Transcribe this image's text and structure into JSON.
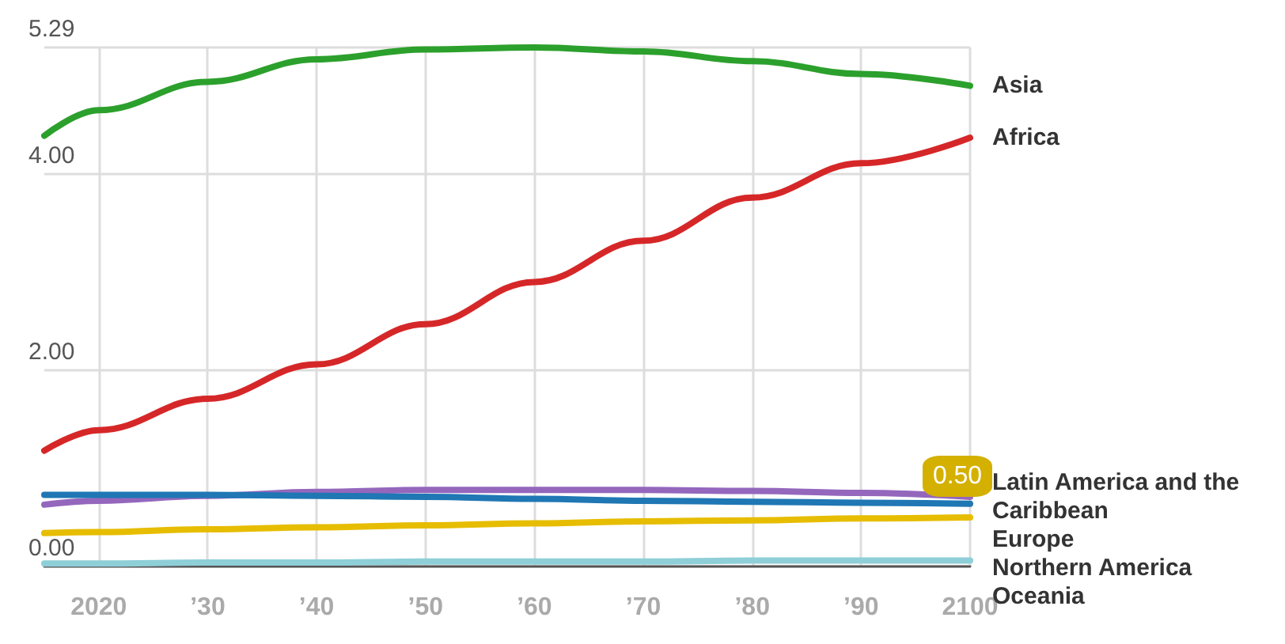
{
  "chart_data": {
    "type": "line",
    "x": [
      2015,
      2020,
      2030,
      2040,
      2050,
      2060,
      2070,
      2080,
      2090,
      2100
    ],
    "series": [
      {
        "name": "Asia",
        "color": "#2ca02c",
        "values": [
          4.39,
          4.65,
          4.94,
          5.17,
          5.27,
          5.29,
          5.25,
          5.15,
          5.02,
          4.9
        ]
      },
      {
        "name": "Africa",
        "color": "#d62728",
        "values": [
          1.18,
          1.39,
          1.71,
          2.06,
          2.47,
          2.9,
          3.32,
          3.76,
          4.11,
          4.37
        ]
      },
      {
        "name": "Latin America and the Caribbean",
        "color": "#9467bd",
        "values": [
          0.63,
          0.67,
          0.72,
          0.76,
          0.78,
          0.78,
          0.78,
          0.77,
          0.75,
          0.71
        ]
      },
      {
        "name": "Europe",
        "color": "#1f77b4",
        "values": [
          0.73,
          0.73,
          0.73,
          0.72,
          0.71,
          0.69,
          0.67,
          0.66,
          0.65,
          0.64
        ]
      },
      {
        "name": "Northern America",
        "color": "#e6bd00",
        "values": [
          0.34,
          0.35,
          0.38,
          0.4,
          0.42,
          0.44,
          0.46,
          0.47,
          0.49,
          0.5
        ]
      },
      {
        "name": "Oceania",
        "color": "#8ecfd8",
        "values": [
          0.03,
          0.03,
          0.04,
          0.04,
          0.05,
          0.05,
          0.05,
          0.06,
          0.06,
          0.06
        ]
      }
    ],
    "xlim": [
      2015,
      2100
    ],
    "xticks": [
      {
        "value": 2020,
        "label": "2020"
      },
      {
        "value": 2030,
        "label": "’30"
      },
      {
        "value": 2040,
        "label": "’40"
      },
      {
        "value": 2050,
        "label": "’50"
      },
      {
        "value": 2060,
        "label": "’60"
      },
      {
        "value": 2070,
        "label": "’70"
      },
      {
        "value": 2080,
        "label": "’80"
      },
      {
        "value": 2090,
        "label": "’90"
      },
      {
        "value": 2100,
        "label": "2100"
      }
    ],
    "ylim": [
      0,
      5.29
    ],
    "yticks": [
      {
        "value": 0,
        "label": "0.00"
      },
      {
        "value": 2,
        "label": "2.00"
      },
      {
        "value": 4,
        "label": "4.00"
      },
      {
        "value": 5.29,
        "label": "5.29"
      }
    ],
    "annotations": [
      {
        "text": "0.50",
        "x": 2100,
        "y": 0.5
      }
    ],
    "grid": true,
    "legend": false,
    "marker": "none",
    "line_style": "solid"
  }
}
